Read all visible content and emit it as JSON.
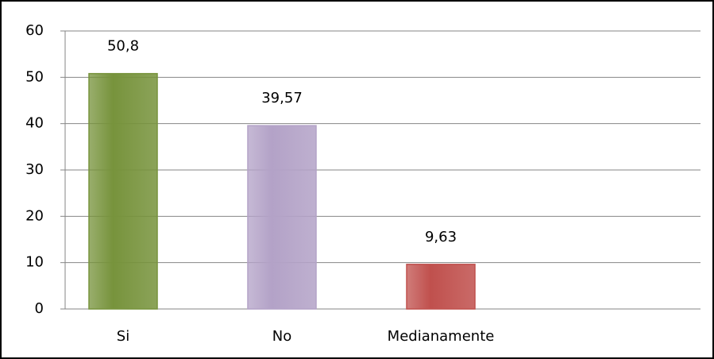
{
  "chart_data": {
    "type": "bar",
    "categories": [
      "Si",
      "No",
      "Medianamente",
      null
    ],
    "values": [
      50.8,
      39.57,
      9.63,
      null
    ],
    "value_labels": [
      "50,8",
      "39,57",
      "9,63",
      null
    ],
    "colors": [
      "#77933c",
      "#b3a2c7",
      "#c0504d",
      null
    ],
    "ylim": [
      0,
      60
    ],
    "yticks": [
      0,
      10,
      20,
      30,
      40,
      50,
      60
    ],
    "grid": true
  }
}
